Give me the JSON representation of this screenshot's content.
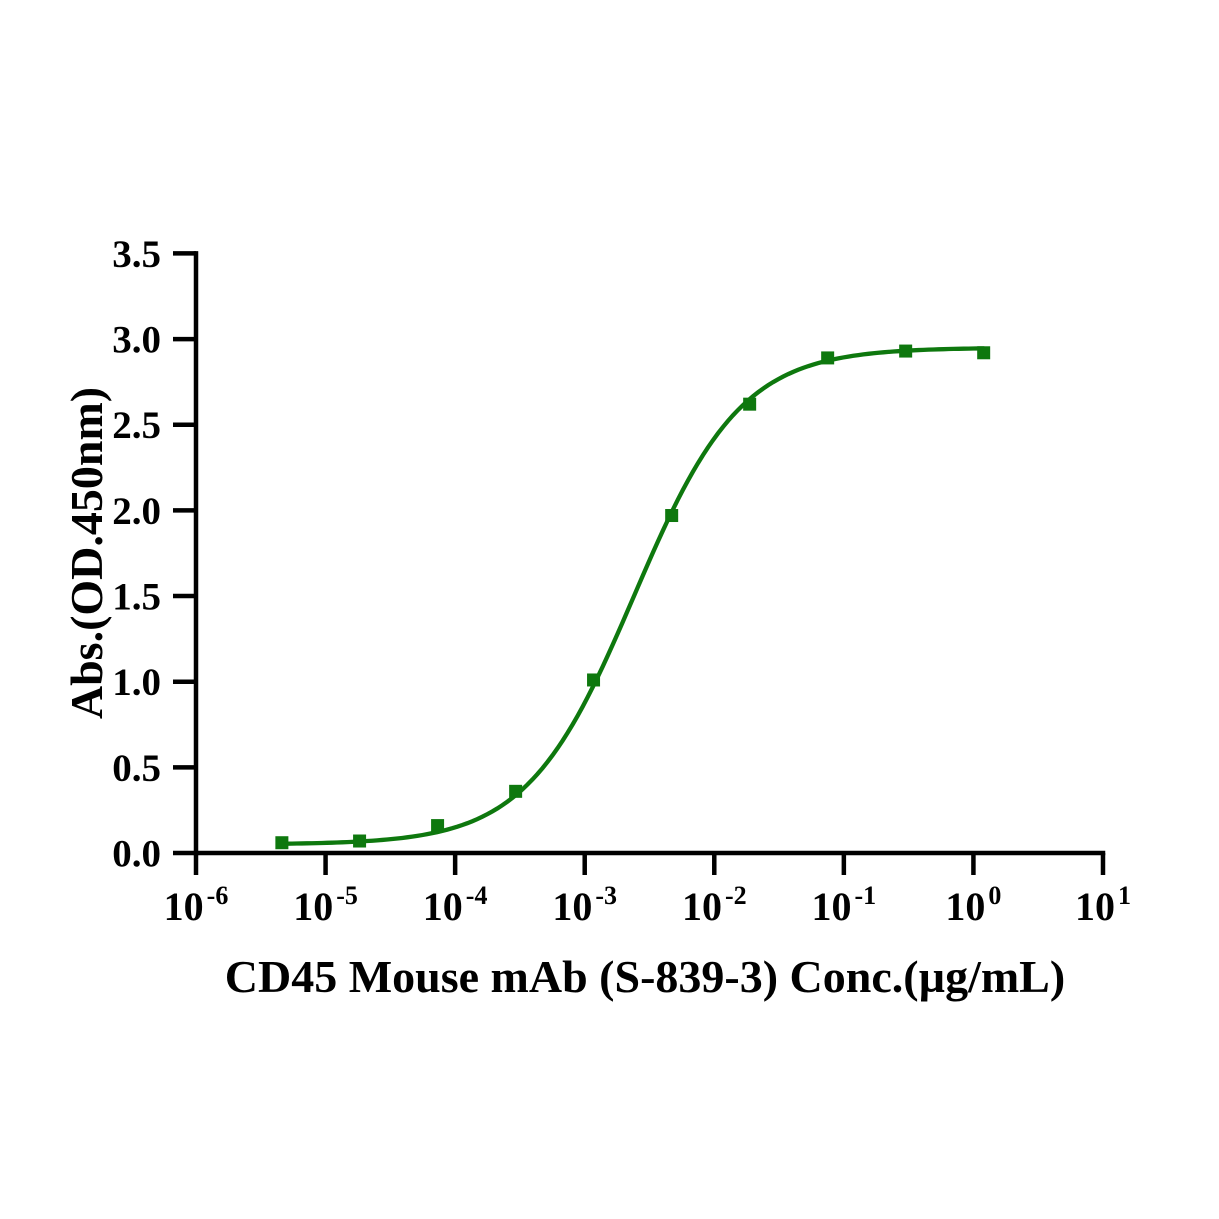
{
  "page": {
    "background_color": "#ffffff",
    "axis_color": "#000000"
  },
  "chart_data": {
    "type": "line",
    "subtype": "dose-response-sigmoid",
    "title": "",
    "xlabel": "CD45 Mouse mAb (S-839-3) Conc.(µg/mL)",
    "ylabel": "Abs.(OD.450nm)",
    "x_scale": "log10",
    "x_tick_base": "10",
    "x_tick_exponents": [
      "-6",
      "-5",
      "-4",
      "-3",
      "-2",
      "-1",
      "0",
      "1"
    ],
    "xlim_exponents": [
      -6,
      1
    ],
    "y_ticks": [
      {
        "value": 0.0,
        "label": "0.0"
      },
      {
        "value": 0.5,
        "label": "0.5"
      },
      {
        "value": 1.0,
        "label": "1.0"
      },
      {
        "value": 1.5,
        "label": "1.5"
      },
      {
        "value": 2.0,
        "label": "2.0"
      },
      {
        "value": 2.5,
        "label": "2.5"
      },
      {
        "value": 3.0,
        "label": "3.0"
      },
      {
        "value": 3.5,
        "label": "3.5"
      }
    ],
    "ylim": [
      0,
      3.5
    ],
    "grid": false,
    "legend": false,
    "series": [
      {
        "marker": "filled-square",
        "color": "#0e780e",
        "points": [
          {
            "x": 4.6e-06,
            "y": 0.06
          },
          {
            "x": 1.83e-05,
            "y": 0.07
          },
          {
            "x": 7.32e-05,
            "y": 0.16
          },
          {
            "x": 0.000293,
            "y": 0.36
          },
          {
            "x": 0.00117,
            "y": 1.01
          },
          {
            "x": 0.00469,
            "y": 1.97
          },
          {
            "x": 0.01875,
            "y": 2.62
          },
          {
            "x": 0.075,
            "y": 2.89
          },
          {
            "x": 0.3,
            "y": 2.93
          },
          {
            "x": 1.2,
            "y": 2.92
          }
        ]
      }
    ],
    "fit_curve": {
      "model": "4PL",
      "bottom": 0.05,
      "top": 2.95,
      "ec50": 0.0024,
      "hill": 1.05,
      "x_start": 4.6e-06,
      "x_end": 1.2,
      "color": "#0e780e"
    }
  }
}
